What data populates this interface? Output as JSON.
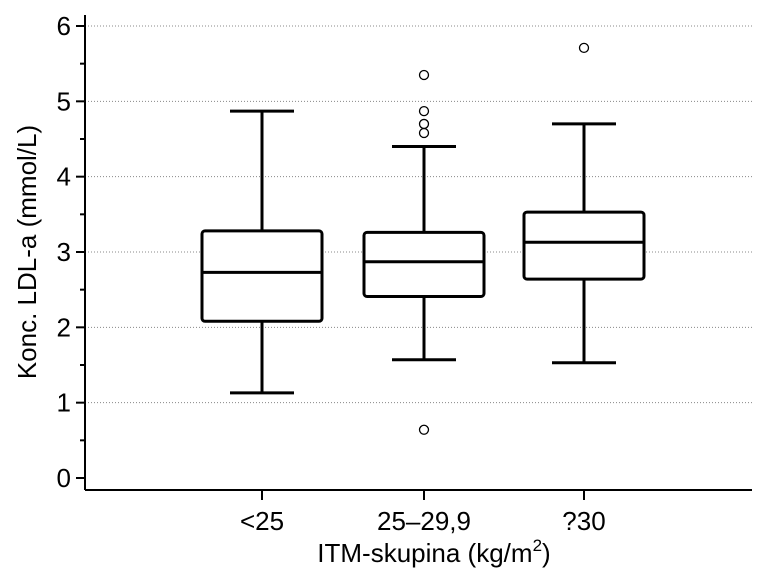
{
  "chart_data": {
    "type": "box",
    "xlabel": "ITM-skupina (kg/m",
    "xlabel_superscript": "2",
    "xlabel_suffix": ")",
    "ylabel": "Konc. LDL-a (mmol/L)",
    "ylim": [
      0,
      6
    ],
    "yticks": [
      0,
      1,
      2,
      3,
      4,
      5,
      6
    ],
    "grid": "horizontal-dotted",
    "categories": [
      "<25",
      "25–29,9",
      "?30"
    ],
    "boxes": [
      {
        "category": "<25",
        "whisker_low": 1.13,
        "q1": 2.08,
        "median": 2.73,
        "q3": 3.28,
        "whisker_high": 4.87,
        "outliers": []
      },
      {
        "category": "25–29,9",
        "whisker_low": 1.57,
        "q1": 2.41,
        "median": 2.87,
        "q3": 3.26,
        "whisker_high": 4.4,
        "outliers": [
          0.64,
          4.58,
          4.7,
          4.87,
          5.35
        ]
      },
      {
        "category": "?30",
        "whisker_low": 1.53,
        "q1": 2.64,
        "median": 3.13,
        "q3": 3.53,
        "whisker_high": 4.7,
        "outliers": [
          5.71
        ]
      }
    ]
  }
}
